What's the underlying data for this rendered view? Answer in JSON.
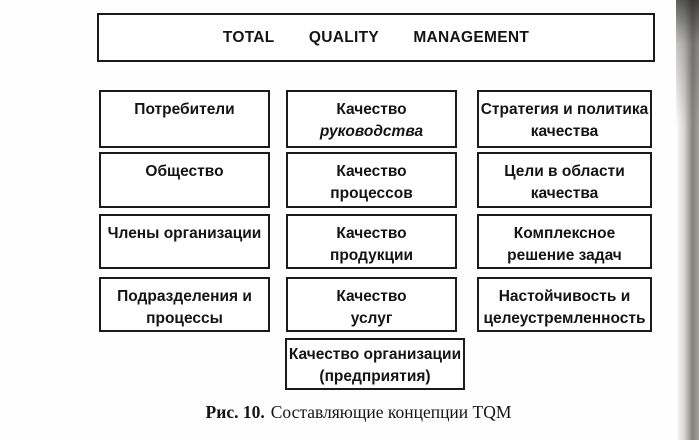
{
  "colors": {
    "page_bg": "#fefefe",
    "box_border": "#1b1b1b",
    "text": "#141414",
    "scan_edge_shadow": "#6e6a64"
  },
  "diagram": {
    "title_box": {
      "label": "TOTAL QUALITY MANAGEMENT"
    },
    "columns": {
      "left": {
        "boxes": [
          {
            "text": "Потребители"
          },
          {
            "text": "Общество"
          },
          {
            "text": "Члены организации"
          },
          {
            "text": "Подразделения и\nпроцессы"
          }
        ]
      },
      "middle": {
        "boxes": [
          {
            "text": "Качество",
            "text_italic": "руководства"
          },
          {
            "text": "Качество\nпроцессов"
          },
          {
            "text": "Качество\nпродукции"
          },
          {
            "text": "Качество\nуслуг"
          },
          {
            "text": "Качество организации\n(предприятия)"
          }
        ]
      },
      "right": {
        "boxes": [
          {
            "text": "Стратегия и политика\nкачества"
          },
          {
            "text": "Цели в области\nкачества"
          },
          {
            "text": "Комплексное\nрешение задач"
          },
          {
            "text": "Настойчивость и\nцелеустремленность"
          }
        ]
      }
    }
  },
  "caption": {
    "figure_label": "Рис. 10.",
    "text": "Составляющие концепции TQM"
  }
}
